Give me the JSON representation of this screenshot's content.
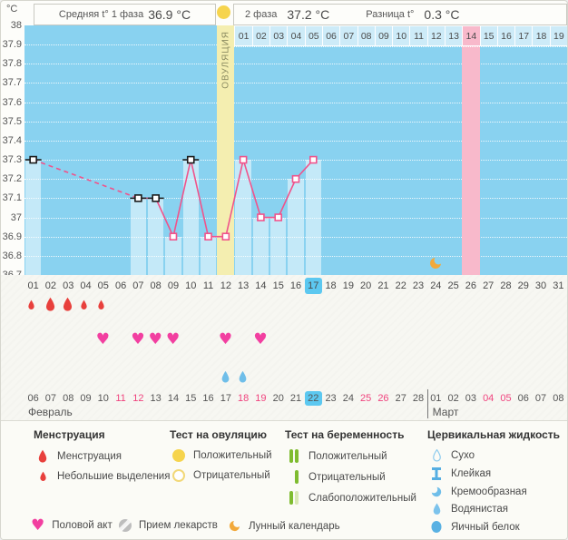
{
  "header": {
    "y_axis_unit": "°C",
    "stat1_label": "Средняя t° 1 фаза",
    "stat1_value": "36.9 °C",
    "stat2_label": "2 фаза",
    "stat2_value": "37.2 °C",
    "stat3_label": "Разница t°",
    "stat3_value": "0.3 °C"
  },
  "chart_data": {
    "type": "line",
    "title": "Basal body temperature cycle chart",
    "ylabel": "°C",
    "ylim": [
      36.7,
      38.0
    ],
    "y_step": 0.1,
    "y_ticks": [
      "38",
      "37.9",
      "37.8",
      "37.7",
      "37.6",
      "37.5",
      "37.4",
      "37.3",
      "37.2",
      "37.1",
      "37",
      "36.9",
      "36.8",
      "36.7"
    ],
    "days_in_cycle": 31,
    "cycle_day_labels": [
      "01",
      "02",
      "03",
      "04",
      "05",
      "06",
      "07",
      "08",
      "09",
      "10",
      "11",
      "12",
      "13",
      "14",
      "15",
      "16",
      "17",
      "18",
      "19",
      "20",
      "21",
      "22",
      "23",
      "24",
      "25",
      "26",
      "27",
      "28",
      "29",
      "30",
      "31"
    ],
    "current_cycle_day": 17,
    "ovulation_day": 12,
    "ovulation_label": "ОВУЛЯЦИЯ",
    "predicted_period_day": 26,
    "lunar_calendar_day": 24,
    "second_phase_row": {
      "labels": [
        "01",
        "02",
        "03",
        "04",
        "05",
        "06",
        "07",
        "08",
        "09",
        "10",
        "11",
        "12",
        "13",
        "14",
        "15",
        "16",
        "17",
        "18",
        "19"
      ],
      "highlighted_label": "14"
    },
    "temperatures": [
      {
        "day": 1,
        "value": 37.3,
        "marker": "black"
      },
      {
        "day": 7,
        "value": 37.1,
        "marker": "black"
      },
      {
        "day": 8,
        "value": 37.1,
        "marker": "black"
      },
      {
        "day": 9,
        "value": 36.9,
        "marker": "pink"
      },
      {
        "day": 10,
        "value": 37.3,
        "marker": "black"
      },
      {
        "day": 11,
        "value": 36.9,
        "marker": "pink"
      },
      {
        "day": 12,
        "value": 36.9,
        "marker": "pink"
      },
      {
        "day": 13,
        "value": 37.3,
        "marker": "pink"
      },
      {
        "day": 14,
        "value": 37.0,
        "marker": "pink"
      },
      {
        "day": 15,
        "value": 37.0,
        "marker": "pink"
      },
      {
        "day": 16,
        "value": 37.2,
        "marker": "pink"
      },
      {
        "day": 17,
        "value": 37.3,
        "marker": "pink"
      }
    ],
    "menstruation": [
      {
        "day": 1,
        "size": "small"
      },
      {
        "day": 2,
        "size": "big"
      },
      {
        "day": 3,
        "size": "big"
      },
      {
        "day": 4,
        "size": "small"
      },
      {
        "day": 5,
        "size": "small"
      }
    ],
    "intercourse_days": [
      5,
      7,
      8,
      9,
      12,
      14
    ],
    "cervical_fluid_days": [
      12,
      13
    ],
    "calendar": {
      "date_labels": [
        "06",
        "07",
        "08",
        "09",
        "10",
        "11",
        "12",
        "13",
        "14",
        "15",
        "16",
        "17",
        "18",
        "19",
        "20",
        "21",
        "22",
        "23",
        "24",
        "25",
        "26",
        "27",
        "28",
        "01",
        "02",
        "03",
        "04",
        "05",
        "06",
        "07",
        "08"
      ],
      "weekend_indices": [
        5,
        6,
        12,
        13,
        19,
        20,
        26,
        27
      ],
      "today_index": 16,
      "month_divider_index": 23,
      "month1": "Февраль",
      "month2": "Март"
    }
  },
  "legend": {
    "groups": [
      {
        "title": "Менструация",
        "items": [
          {
            "icon": "drop-big",
            "label": "Менструация"
          },
          {
            "icon": "drop-small",
            "label": "Небольшие выделения"
          }
        ]
      },
      {
        "title": "Тест на овуляцию",
        "items": [
          {
            "icon": "circle-filled",
            "label": "Положительный"
          },
          {
            "icon": "circle-outline",
            "label": "Отрицательный"
          }
        ]
      },
      {
        "title": "Тест на беременность",
        "items": [
          {
            "icon": "bars-positive",
            "label": "Положительный"
          },
          {
            "icon": "bar-negative",
            "label": "Отрицательный"
          },
          {
            "icon": "bars-weak",
            "label": "Слабоположительный"
          }
        ]
      },
      {
        "title": "Цервикальная жидкость",
        "items": [
          {
            "icon": "drop-outline",
            "label": "Сухо"
          },
          {
            "icon": "ibeam",
            "label": "Клейкая"
          },
          {
            "icon": "creamy",
            "label": "Кремообразная"
          },
          {
            "icon": "drop-watery",
            "label": "Водянистая"
          },
          {
            "icon": "egg-white",
            "label": "Яичный белок"
          }
        ]
      }
    ],
    "footer_items": [
      {
        "icon": "heart",
        "label": "Половой акт"
      },
      {
        "icon": "pill",
        "label": "Прием лекарств"
      },
      {
        "icon": "moon",
        "label": "Лунный календарь"
      }
    ]
  },
  "colors": {
    "chart_bg": "#89D2F0",
    "ovulation_column": "#F4EEB0",
    "period_column": "#F8B9CB",
    "temp_line": "#F0538B",
    "black_marker": "#1a1a1a",
    "menstruation": "#E8403C",
    "heart": "#F23FA0",
    "cervical_fluid": "#6FBEE9",
    "moon": "#F2A93B",
    "ovulation_test": "#F6D44D",
    "pregnancy_test": "#7FBC30",
    "pregnancy_test_weak": "#D9E8B4",
    "weekend_date": "#F0437E",
    "today_highlight": "#5CC8F0"
  }
}
